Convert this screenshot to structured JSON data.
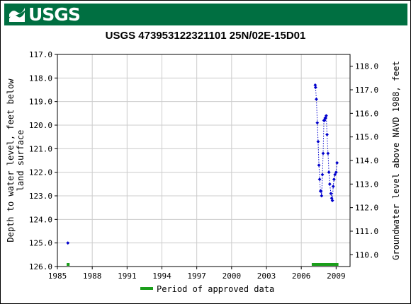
{
  "header": {
    "logo_text": "USGS",
    "logo_icon": "usgs-wave-icon",
    "brand_color": "#006f41"
  },
  "chart_data": {
    "type": "scatter",
    "title": "USGS 473953122321101 25N/02E-15D01",
    "ylabel_left": "Depth to water level, feet below land surface",
    "ylabel_right": "Groundwater level above NAVD 1988, feet",
    "xlabel": "",
    "x_tick_labels": [
      "1985",
      "1988",
      "1991",
      "1994",
      "1997",
      "2000",
      "2003",
      "2006",
      "2009"
    ],
    "xlim": [
      1985,
      2010.2
    ],
    "ylim_left": [
      117.0,
      126.0
    ],
    "y_left_tick_labels": [
      "117.0",
      "118.0",
      "119.0",
      "120.0",
      "121.0",
      "122.0",
      "123.0",
      "124.0",
      "125.0",
      "126.0"
    ],
    "ylim_right": [
      118.5,
      109.5
    ],
    "y_right_tick_labels": [
      "118.0",
      "117.0",
      "116.0",
      "115.0",
      "114.0",
      "113.0",
      "112.0",
      "111.0",
      "110.0"
    ],
    "left_inverted": true,
    "series": [
      {
        "color": "#0000cc",
        "marker": "diamond",
        "line": "dotted",
        "points": [
          {
            "x": 1985.9,
            "y": 125.0
          },
          {
            "x": 2007.2,
            "y": 118.3
          },
          {
            "x": 2007.23,
            "y": 118.4
          },
          {
            "x": 2007.3,
            "y": 118.9
          },
          {
            "x": 2007.38,
            "y": 119.9
          },
          {
            "x": 2007.45,
            "y": 120.7
          },
          {
            "x": 2007.52,
            "y": 121.7
          },
          {
            "x": 2007.58,
            "y": 122.3
          },
          {
            "x": 2007.65,
            "y": 122.8
          },
          {
            "x": 2007.7,
            "y": 122.8
          },
          {
            "x": 2007.75,
            "y": 123.0
          },
          {
            "x": 2007.82,
            "y": 122.1
          },
          {
            "x": 2007.88,
            "y": 121.2
          },
          {
            "x": 2007.95,
            "y": 119.8
          },
          {
            "x": 2008.0,
            "y": 119.8
          },
          {
            "x": 2008.05,
            "y": 119.7
          },
          {
            "x": 2008.1,
            "y": 119.7
          },
          {
            "x": 2008.15,
            "y": 119.6
          },
          {
            "x": 2008.22,
            "y": 120.4
          },
          {
            "x": 2008.3,
            "y": 121.2
          },
          {
            "x": 2008.38,
            "y": 122.0
          },
          {
            "x": 2008.45,
            "y": 122.5
          },
          {
            "x": 2008.55,
            "y": 122.9
          },
          {
            "x": 2008.62,
            "y": 123.1
          },
          {
            "x": 2008.68,
            "y": 123.2
          },
          {
            "x": 2008.75,
            "y": 122.6
          },
          {
            "x": 2008.82,
            "y": 122.3
          },
          {
            "x": 2008.9,
            "y": 122.1
          },
          {
            "x": 2009.0,
            "y": 122.0
          },
          {
            "x": 2009.08,
            "y": 121.6
          }
        ]
      }
    ],
    "approved_periods": [
      {
        "start": 1985.8,
        "end": 1986.05
      },
      {
        "start": 2006.9,
        "end": 2009.2
      }
    ],
    "approved_color": "#1a9e1a",
    "legend": {
      "label": "Period of approved data",
      "placement": "bottom-center"
    },
    "grid": true
  }
}
